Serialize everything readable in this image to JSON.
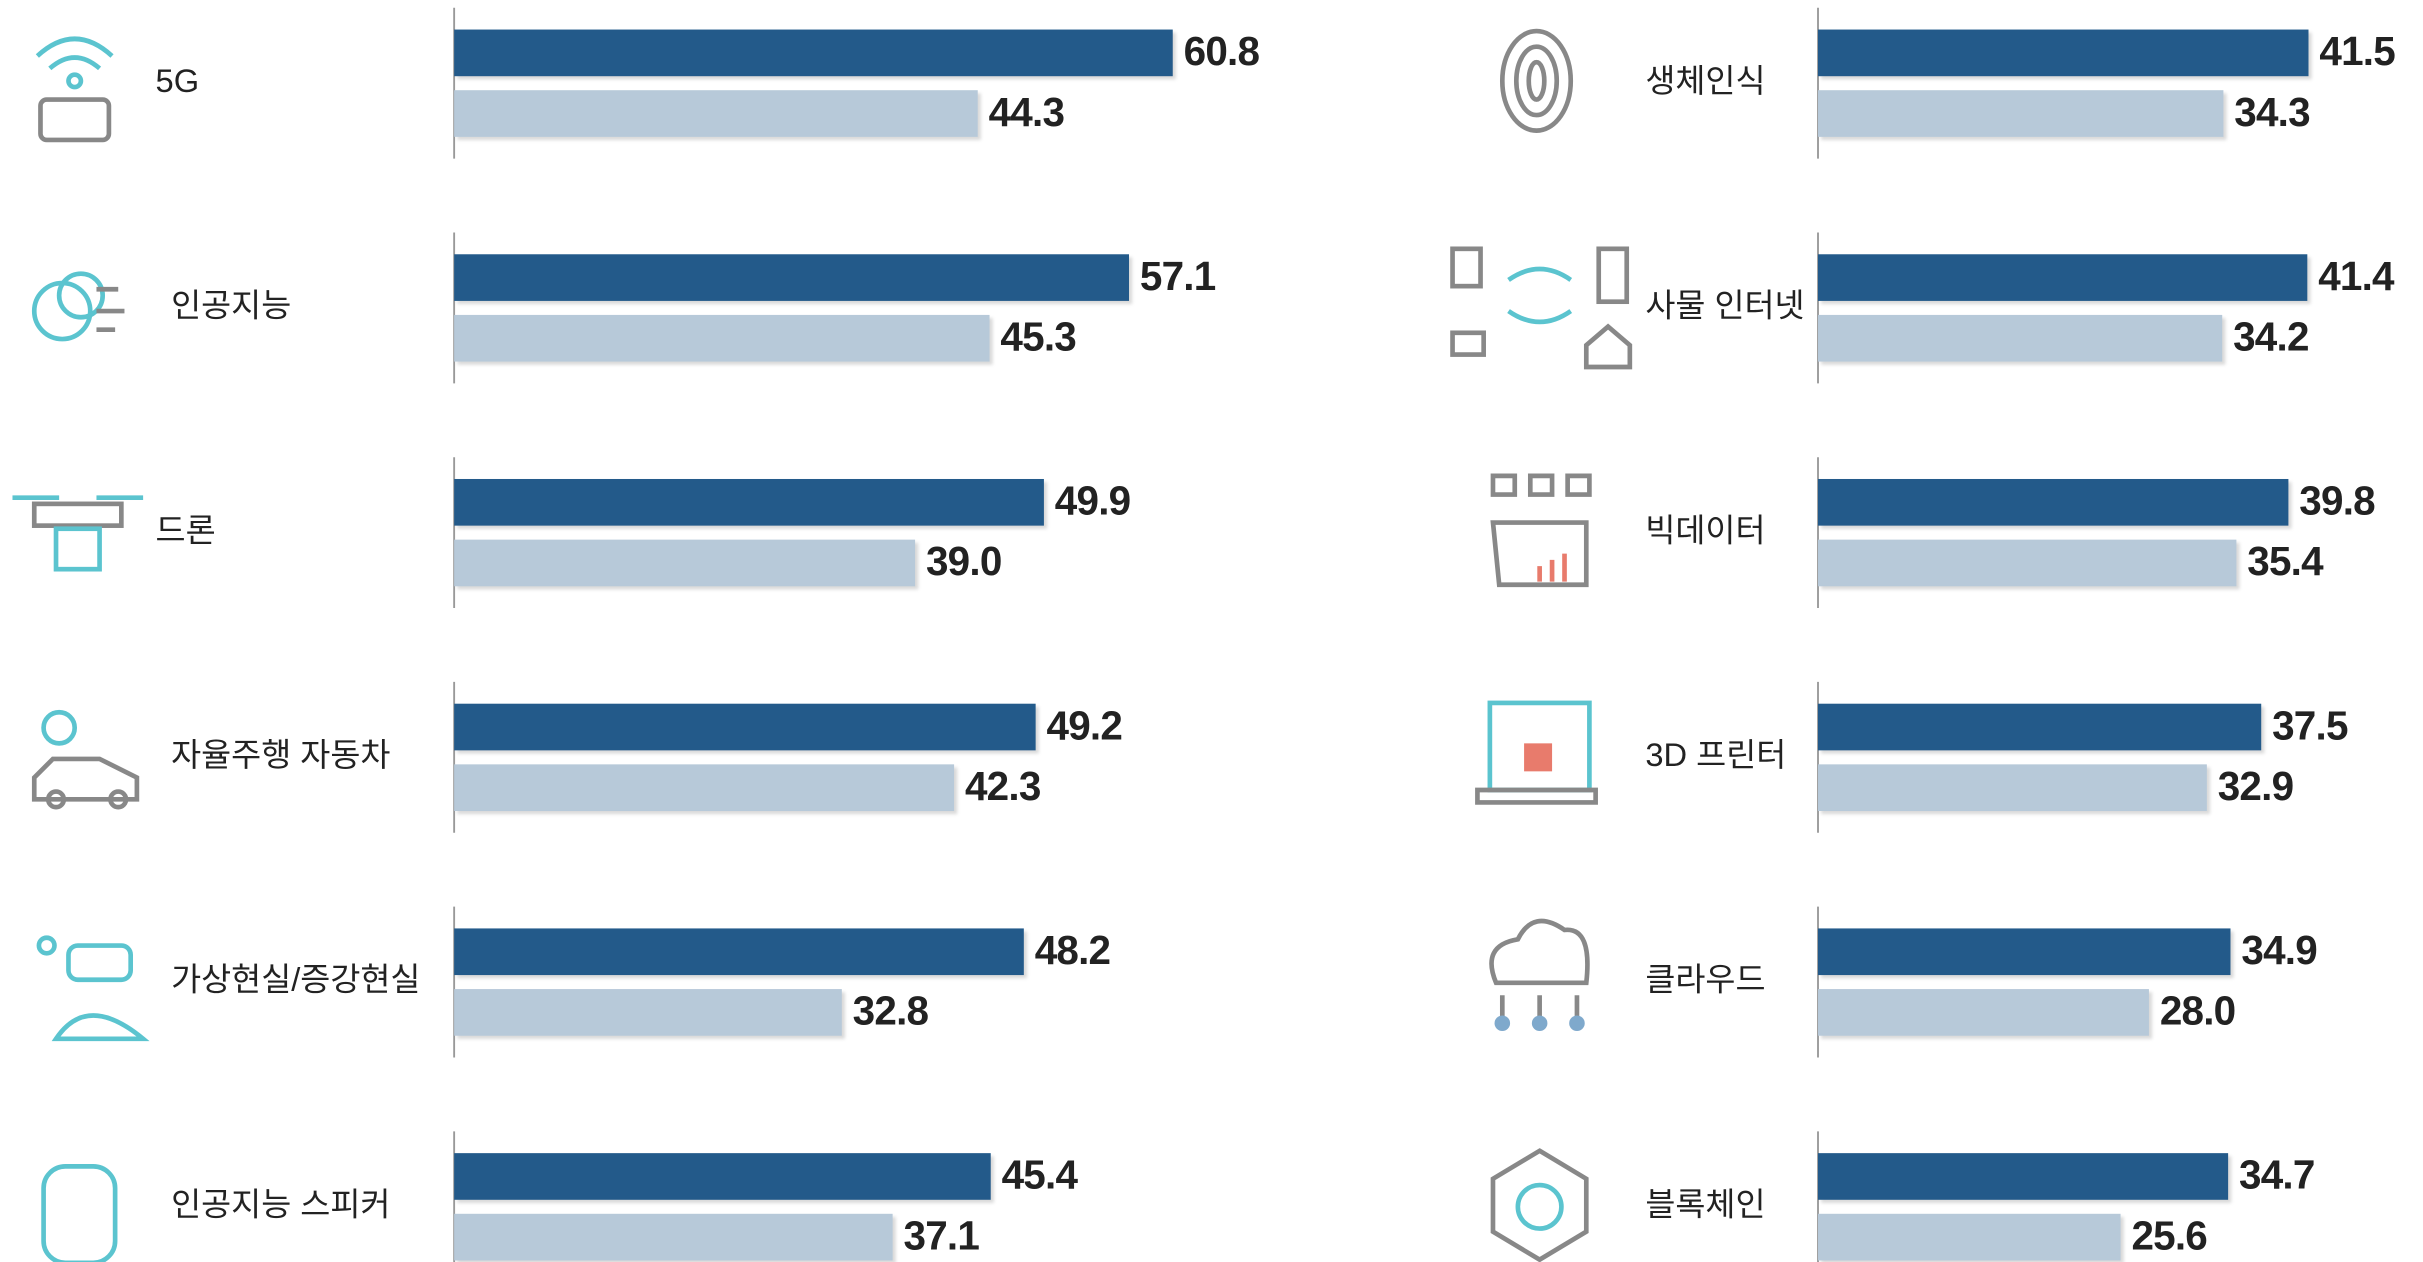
{
  "chart_data": [
    {
      "type": "bar",
      "orientation": "horizontal",
      "categories": [
        "5G",
        "인공지능",
        "드론",
        "자율주행 자동차",
        "가상현실/증강현실",
        "인공지능 스피커"
      ],
      "series": [
        {
          "color": "#235a8a",
          "values": [
            60.8,
            57.1,
            49.9,
            49.2,
            48.2,
            45.4
          ],
          "value_labels": [
            "60.8",
            "57.1",
            "49.9",
            "49.2",
            "48.2",
            "45.4"
          ]
        },
        {
          "color": "#b7c9d9",
          "values": [
            44.3,
            45.3,
            39.0,
            42.3,
            32.8,
            37.1
          ],
          "value_labels": [
            "44.3",
            "45.3",
            "39.0",
            "42.3",
            "32.8",
            "37.1"
          ]
        }
      ],
      "xlim": [
        0,
        80
      ]
    },
    {
      "type": "bar",
      "orientation": "horizontal",
      "categories": [
        "생체인식",
        "사물 인터넷",
        "빅데이터",
        "3D 프린터",
        "클라우드",
        "블록체인"
      ],
      "series": [
        {
          "color": "#235a8a",
          "values": [
            41.5,
            41.4,
            39.8,
            37.5,
            34.9,
            34.7
          ],
          "value_labels": [
            "41.5",
            "41.4",
            "39.8",
            "37.5",
            "34.9",
            "34.7"
          ]
        },
        {
          "color": "#b7c9d9",
          "values": [
            34.3,
            34.2,
            35.4,
            32.9,
            28.0,
            25.6
          ],
          "value_labels": [
            "34.3",
            "34.2",
            "35.4",
            "32.9",
            "28.0",
            "25.6"
          ]
        }
      ],
      "xlim": [
        0,
        80
      ]
    }
  ]
}
